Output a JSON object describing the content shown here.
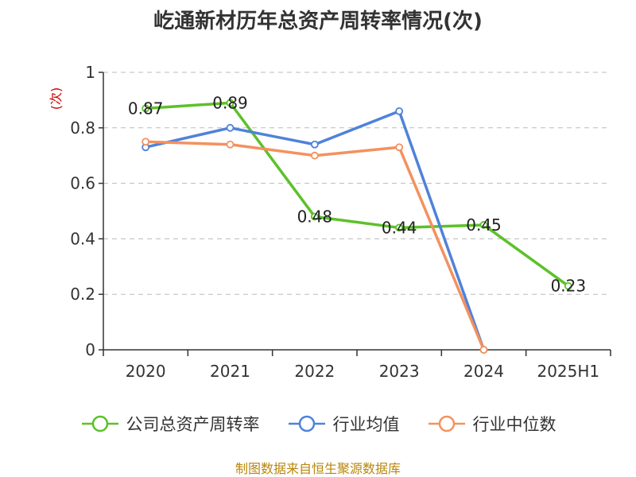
{
  "title": "屹通新材历年总资产周转率情况(次)",
  "source": "制图数据来自恒生聚源数据库",
  "chart_data": {
    "type": "line",
    "categories": [
      "2020",
      "2021",
      "2022",
      "2023",
      "2024",
      "2025H1"
    ],
    "ylabel": "(次)",
    "ylim": [
      0,
      1
    ],
    "yticks": [
      "0",
      "0.2",
      "0.4",
      "0.6",
      "0.8",
      "1"
    ],
    "grid": true,
    "legend_position": "bottom",
    "series": [
      {
        "name": "公司总资产周转率",
        "color": "#5cc12a",
        "values": [
          0.87,
          0.89,
          0.48,
          0.44,
          0.45,
          0.23
        ],
        "labels": [
          "0.87",
          "0.89",
          "0.48",
          "0.44",
          "0.45",
          "0.23"
        ]
      },
      {
        "name": "行业均值",
        "color": "#4f82d9",
        "values": [
          0.73,
          0.8,
          0.74,
          0.86,
          0.0,
          null
        ]
      },
      {
        "name": "行业中位数",
        "color": "#f4915e",
        "values": [
          0.75,
          0.74,
          0.7,
          0.73,
          0.0,
          null
        ]
      }
    ]
  }
}
